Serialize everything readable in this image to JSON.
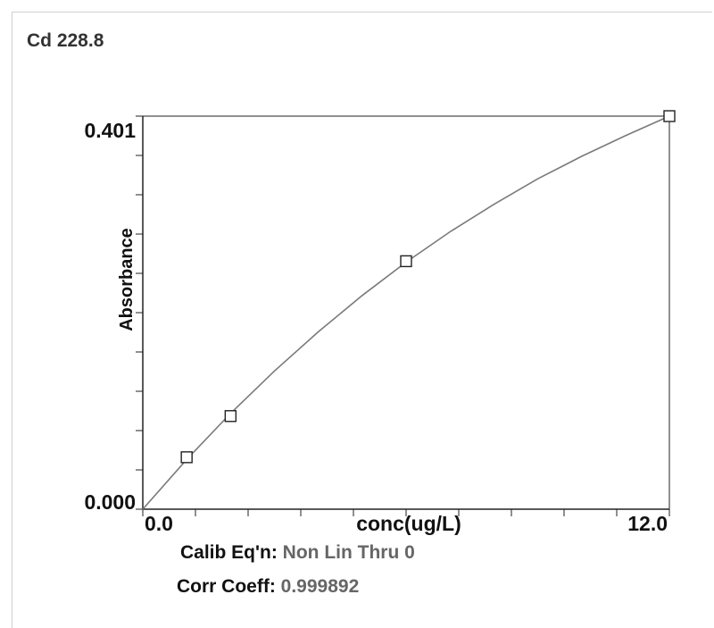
{
  "title": "Cd 228.8",
  "chart_data": {
    "type": "scatter",
    "title": "Cd 228.8",
    "xlabel": "conc(ug/L)",
    "ylabel": "Absorbance",
    "xlim": [
      0.0,
      12.0
    ],
    "ylim": [
      0.0,
      0.401
    ],
    "x_tick_labels": [
      "0.0",
      "12.0"
    ],
    "y_tick_labels": [
      "0.000",
      "0.401"
    ],
    "series": [
      {
        "points": [
          {
            "x": 1.0,
            "y": 0.053
          },
          {
            "x": 2.0,
            "y": 0.095
          },
          {
            "x": 6.0,
            "y": 0.253
          },
          {
            "x": 12.0,
            "y": 0.401
          }
        ]
      }
    ],
    "fit_curve": {
      "x": [
        0,
        1,
        2,
        3,
        4,
        5,
        6,
        7,
        8,
        9,
        10,
        11,
        12
      ],
      "y": [
        0.0,
        0.0508,
        0.0977,
        0.141,
        0.181,
        0.218,
        0.252,
        0.283,
        0.311,
        0.337,
        0.36,
        0.381,
        0.401
      ]
    },
    "marker": "open-square",
    "curve_color": "#7a7a7a",
    "marker_color": "#222222"
  },
  "calib": {
    "label": "Calib Eq'n:",
    "value": "Non Lin Thru 0"
  },
  "corr": {
    "label": "Corr Coeff:",
    "value": "0.999892"
  }
}
